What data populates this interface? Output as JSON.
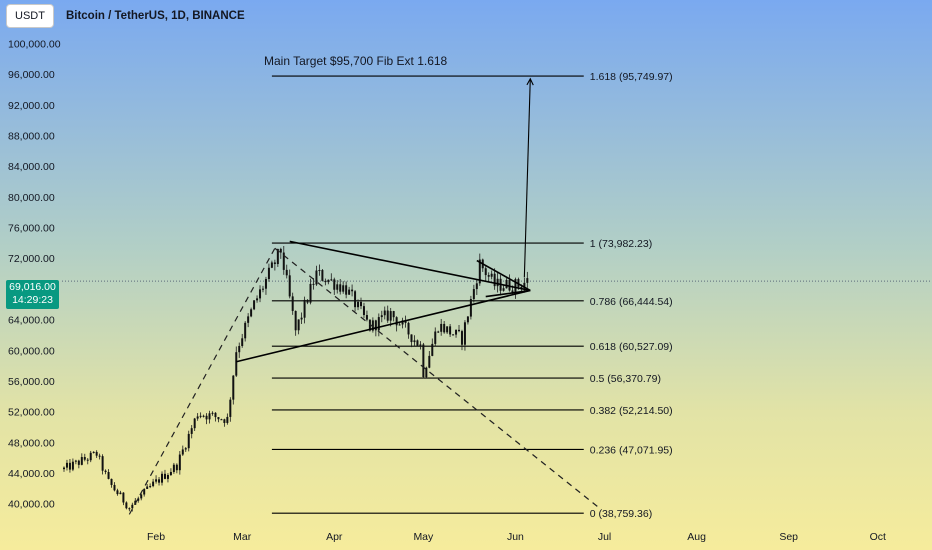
{
  "header": {
    "symbol_box": "USDT",
    "title": "Bitcoin / TetherUS, 1D, BINANCE"
  },
  "current_price": {
    "value": "69,016.00",
    "countdown": "14:29:23",
    "tag_color": "#089981"
  },
  "chart_data": {
    "type": "candlestick",
    "title": "Main Target $95,700 Fib Ext 1.618",
    "xlabel": "",
    "ylabel": "",
    "yticks": [
      "100,000.00",
      "96,000.00",
      "92,000.00",
      "88,000.00",
      "84,000.00",
      "80,000.00",
      "76,000.00",
      "72,000.00",
      "68,000.00",
      "64,000.00",
      "60,000.00",
      "56,000.00",
      "52,000.00",
      "48,000.00",
      "44,000.00",
      "40,000.00"
    ],
    "ytick_values": [
      100000,
      96000,
      92000,
      88000,
      84000,
      80000,
      76000,
      72000,
      68000,
      64000,
      60000,
      56000,
      52000,
      48000,
      44000,
      40000
    ],
    "xticks": [
      "Feb",
      "Mar",
      "Apr",
      "May",
      "Jun",
      "Jul",
      "Aug",
      "Sep",
      "Oct"
    ],
    "xtick_dates": [
      "2024-02-01",
      "2024-03-01",
      "2024-04-01",
      "2024-05-01",
      "2024-06-01",
      "2024-07-01",
      "2024-08-01",
      "2024-09-01",
      "2024-10-01"
    ],
    "ylim": [
      38000,
      101500
    ],
    "x_range": [
      "2024-01-01",
      "2024-10-10"
    ],
    "grid": false,
    "colors": {
      "up": "#089981",
      "down": "#f23645",
      "candle_body": "#000000",
      "line": "#000000"
    },
    "anchors": [
      [
        "2024-01-01",
        44500
      ],
      [
        "2024-01-12",
        46500
      ],
      [
        "2024-01-16",
        42800
      ],
      [
        "2024-01-23",
        39500
      ],
      [
        "2024-01-31",
        42500
      ],
      [
        "2024-02-08",
        45000
      ],
      [
        "2024-02-15",
        51800
      ],
      [
        "2024-02-25",
        51000
      ],
      [
        "2024-02-28",
        60000
      ],
      [
        "2024-03-05",
        66000
      ],
      [
        "2024-03-14",
        73000
      ],
      [
        "2024-03-19",
        62500
      ],
      [
        "2024-03-26",
        70000
      ],
      [
        "2024-04-05",
        68000
      ],
      [
        "2024-04-13",
        63000
      ],
      [
        "2024-04-20",
        64800
      ],
      [
        "2024-04-30",
        60600
      ],
      [
        "2024-05-01",
        57200
      ],
      [
        "2024-05-06",
        63300
      ],
      [
        "2024-05-14",
        61500
      ],
      [
        "2024-05-20",
        71300
      ],
      [
        "2024-05-25",
        68500
      ],
      [
        "2024-06-02",
        68500
      ],
      [
        "2024-06-05",
        69016
      ]
    ],
    "fib_levels": [
      {
        "ratio": 1.618,
        "value": 95749.97,
        "label": "1.618 (95,749.97)"
      },
      {
        "ratio": 1,
        "value": 73982.23,
        "label": "1 (73,982.23)"
      },
      {
        "ratio": 0.786,
        "value": 66444.54,
        "label": "0.786 (66,444.54)"
      },
      {
        "ratio": 0.618,
        "value": 60527.09,
        "label": "0.618 (60,527.09)"
      },
      {
        "ratio": 0.5,
        "value": 56370.79,
        "label": "0.5 (56,370.79)"
      },
      {
        "ratio": 0.382,
        "value": 52214.5,
        "label": "0.382 (52,214.50)"
      },
      {
        "ratio": 0.236,
        "value": 47071.95,
        "label": "0.236 (47,071.95)"
      },
      {
        "ratio": 0,
        "value": 38759.36,
        "label": "0 (38,759.36)"
      }
    ],
    "fib_span": [
      "2024-03-11",
      "2024-06-24"
    ],
    "trendlines": [
      {
        "name": "triangle-upper",
        "from": [
          "2024-03-17",
          74200
        ],
        "to": [
          "2024-06-06",
          67800
        ],
        "style": "solid"
      },
      {
        "name": "triangle-lower",
        "from": [
          "2024-02-28",
          58500
        ],
        "to": [
          "2024-06-06",
          67800
        ],
        "style": "solid"
      },
      {
        "name": "pennant-upper",
        "from": [
          "2024-05-19",
          71700
        ],
        "to": [
          "2024-06-06",
          67800
        ],
        "style": "solid"
      },
      {
        "name": "pennant-lower",
        "from": [
          "2024-05-22",
          67000
        ],
        "to": [
          "2024-06-06",
          67800
        ],
        "style": "solid"
      },
      {
        "name": "dashed-rise",
        "from": [
          "2024-01-23",
          38600
        ],
        "to": [
          "2024-03-12",
          73300
        ],
        "style": "dashed"
      },
      {
        "name": "dashed-fall",
        "from": [
          "2024-03-12",
          73300
        ],
        "to": [
          "2024-06-30",
          39200
        ],
        "style": "dashed"
      },
      {
        "name": "target-arrow",
        "from": [
          "2024-06-04",
          69500
        ],
        "to": [
          "2024-06-06",
          95400
        ],
        "style": "arrow"
      }
    ]
  }
}
